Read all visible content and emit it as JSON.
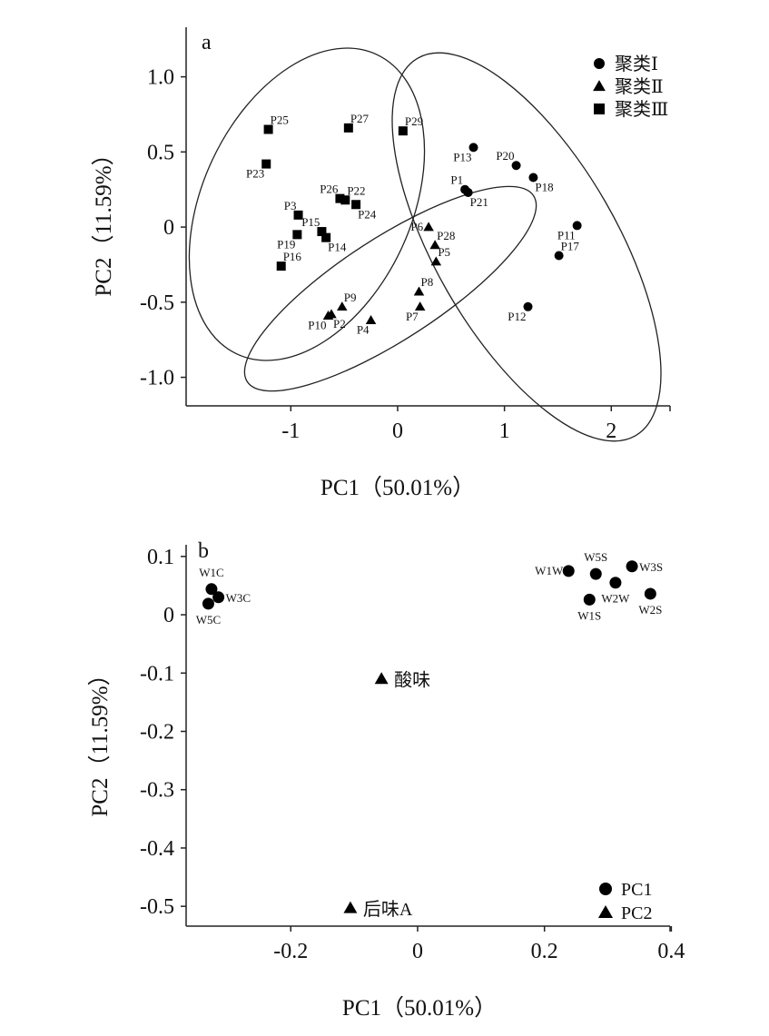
{
  "chart_data": [
    {
      "type": "scatter",
      "panel_label": "a",
      "xlabel": "PC1（50.01%）",
      "ylabel": "PC2（11.59%）",
      "xlim": [
        -1.98,
        2.55
      ],
      "ylim": [
        -1.19,
        1.33
      ],
      "xticks": [
        -1,
        0,
        1,
        2
      ],
      "xtick_labels": [
        "-1",
        "0",
        "1",
        "2"
      ],
      "yticks": [
        1.0,
        0.5,
        0,
        -0.5,
        -1.0
      ],
      "ytick_labels": [
        "1.0",
        "0.5",
        "0",
        "-0.5",
        "-1.0"
      ],
      "grid": false,
      "legend_position": "top-right",
      "legend": [
        {
          "label": "聚类Ⅰ",
          "marker": "circle"
        },
        {
          "label": "聚类Ⅱ",
          "marker": "triangle"
        },
        {
          "label": "聚类Ⅲ",
          "marker": "square"
        }
      ],
      "series": [
        {
          "name": "聚类Ⅰ",
          "marker": "circle",
          "points": [
            {
              "label": "P13",
              "x": 0.71,
              "y": 0.53,
              "pos": "below-left"
            },
            {
              "label": "P20",
              "x": 1.11,
              "y": 0.41,
              "pos": "above-left"
            },
            {
              "label": "P18",
              "x": 1.27,
              "y": 0.33,
              "pos": "below-right"
            },
            {
              "label": "P1",
              "x": 0.63,
              "y": 0.25,
              "pos": "above-left"
            },
            {
              "label": "P21",
              "x": 0.66,
              "y": 0.23,
              "pos": "below-right"
            },
            {
              "label": "P11",
              "x": 1.68,
              "y": 0.01,
              "pos": "below-left"
            },
            {
              "label": "P17",
              "x": 1.51,
              "y": -0.19,
              "pos": "above-right"
            },
            {
              "label": "P12",
              "x": 1.22,
              "y": -0.53,
              "pos": "below-left"
            }
          ]
        },
        {
          "name": "聚类Ⅱ",
          "marker": "triangle",
          "points": [
            {
              "label": "P6",
              "x": 0.29,
              "y": 0.0,
              "pos": "left"
            },
            {
              "label": "P28",
              "x": 0.35,
              "y": -0.12,
              "pos": "above-right"
            },
            {
              "label": "P5",
              "x": 0.36,
              "y": -0.23,
              "pos": "above-right"
            },
            {
              "label": "P8",
              "x": 0.2,
              "y": -0.43,
              "pos": "above-right"
            },
            {
              "label": "P7",
              "x": 0.21,
              "y": -0.53,
              "pos": "below-left"
            },
            {
              "label": "P9",
              "x": -0.52,
              "y": -0.53,
              "pos": "above-right"
            },
            {
              "label": "P10",
              "x": -0.65,
              "y": -0.59,
              "pos": "below-left"
            },
            {
              "label": "P2",
              "x": -0.62,
              "y": -0.58,
              "pos": "below-right"
            },
            {
              "label": "P4",
              "x": -0.25,
              "y": -0.62,
              "pos": "below-left"
            }
          ]
        },
        {
          "name": "聚类Ⅲ",
          "marker": "square",
          "points": [
            {
              "label": "P25",
              "x": -1.21,
              "y": 0.65,
              "pos": "above-right"
            },
            {
              "label": "P27",
              "x": -0.46,
              "y": 0.66,
              "pos": "above-right"
            },
            {
              "label": "P29",
              "x": 0.05,
              "y": 0.64,
              "pos": "above-right"
            },
            {
              "label": "P23",
              "x": -1.23,
              "y": 0.42,
              "pos": "below-left"
            },
            {
              "label": "P26",
              "x": -0.54,
              "y": 0.19,
              "pos": "above-left"
            },
            {
              "label": "P22",
              "x": -0.49,
              "y": 0.18,
              "pos": "above-right"
            },
            {
              "label": "P24",
              "x": -0.39,
              "y": 0.15,
              "pos": "below-right"
            },
            {
              "label": "P3",
              "x": -0.93,
              "y": 0.08,
              "pos": "above-left"
            },
            {
              "label": "P15",
              "x": -0.71,
              "y": -0.03,
              "pos": "above-left"
            },
            {
              "label": "P14",
              "x": -0.67,
              "y": -0.07,
              "pos": "below-right"
            },
            {
              "label": "P19",
              "x": -0.94,
              "y": -0.05,
              "pos": "below-left"
            },
            {
              "label": "P16",
              "x": -1.09,
              "y": -0.26,
              "pos": "above-right"
            }
          ]
        }
      ]
    },
    {
      "type": "scatter",
      "panel_label": "b",
      "xlabel": "PC1（50.01%）",
      "ylabel": "PC2（11.59%）",
      "xlim": [
        -0.365,
        0.398
      ],
      "ylim": [
        -0.534,
        0.12
      ],
      "xticks": [
        -0.2,
        0,
        0.2,
        0.4
      ],
      "xtick_labels": [
        "-0.2",
        "0",
        "0.2",
        "0.4"
      ],
      "yticks": [
        0.1,
        0,
        -0.1,
        -0.2,
        -0.3,
        -0.4,
        -0.5
      ],
      "ytick_labels": [
        "0.1",
        "0",
        "-0.1",
        "-0.2",
        "-0.3",
        "-0.4",
        "-0.5"
      ],
      "grid": false,
      "legend_position": "bottom-right",
      "legend": [
        {
          "label": "PC1",
          "marker": "circle"
        },
        {
          "label": "PC2",
          "marker": "triangle"
        }
      ],
      "series": [
        {
          "name": "PC1",
          "marker": "circle",
          "points": [
            {
              "label": "W1C",
              "x": -0.325,
              "y": 0.044,
              "pos": "above"
            },
            {
              "label": "W3C",
              "x": -0.314,
              "y": 0.03,
              "pos": "right"
            },
            {
              "label": "W5C",
              "x": -0.33,
              "y": 0.019,
              "pos": "below"
            },
            {
              "label": "W1W",
              "x": 0.238,
              "y": 0.075,
              "pos": "left"
            },
            {
              "label": "W5S",
              "x": 0.281,
              "y": 0.07,
              "pos": "above"
            },
            {
              "label": "W3S",
              "x": 0.338,
              "y": 0.083,
              "pos": "right"
            },
            {
              "label": "W2W",
              "x": 0.312,
              "y": 0.055,
              "pos": "below"
            },
            {
              "label": "W1S",
              "x": 0.271,
              "y": 0.026,
              "pos": "below"
            },
            {
              "label": "W2S",
              "x": 0.367,
              "y": 0.036,
              "pos": "below"
            }
          ]
        },
        {
          "name": "PC2",
          "marker": "triangle",
          "points": [
            {
              "label": "酸味",
              "x": -0.057,
              "y": -0.11,
              "pos": "right-big"
            },
            {
              "label": "后味A",
              "x": -0.106,
              "y": -0.503,
              "pos": "right-big"
            }
          ]
        }
      ]
    }
  ]
}
